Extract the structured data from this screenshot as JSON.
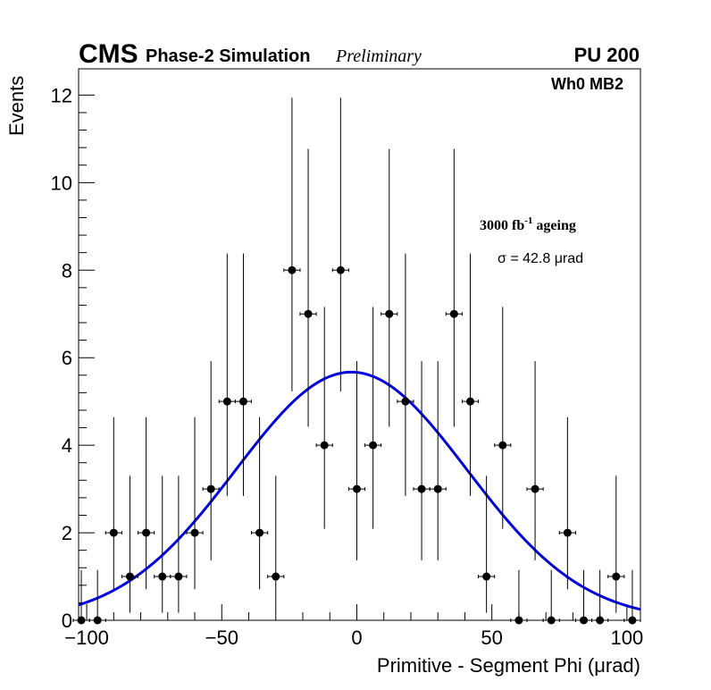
{
  "chart_data": {
    "type": "scatter",
    "title": "",
    "xlabel": "Primitive - Segment Phi (μrad)",
    "ylabel": "Events",
    "xlim": [
      -103,
      105
    ],
    "ylim": [
      0,
      12.6
    ],
    "xticks": [
      -100,
      -50,
      0,
      50,
      100
    ],
    "xtick_labels": [
      "−100",
      "−50",
      "0",
      "50",
      "100"
    ],
    "yticks": [
      0,
      2,
      4,
      6,
      8,
      10,
      12
    ],
    "ytick_labels": [
      "0",
      "2",
      "4",
      "6",
      "8",
      "10",
      "12"
    ],
    "bin_width": 6,
    "grid": false,
    "header": {
      "cms": "CMS",
      "subtitle": "Phase-2 Simulation",
      "preliminary": "Preliminary",
      "pileup": "PU 200",
      "region": "Wh0 MB2",
      "ageing_prefix": "3000 fb",
      "ageing_exp": "-1",
      "ageing_suffix": " ageing",
      "sigma_text": "σ = 42.8 μrad"
    },
    "series": [
      {
        "name": "data",
        "style": "points-with-errors",
        "color": "#000000",
        "x": [
          -102,
          -96,
          -90,
          -84,
          -78,
          -72,
          -66,
          -60,
          -54,
          -48,
          -42,
          -36,
          -30,
          -24,
          -18,
          -12,
          -6,
          0,
          6,
          12,
          18,
          24,
          30,
          36,
          42,
          48,
          54,
          60,
          66,
          72,
          78,
          84,
          90,
          96,
          102
        ],
        "y": [
          0,
          0,
          2,
          1,
          2,
          1,
          1,
          2,
          3,
          5,
          5,
          2,
          1,
          8,
          7,
          4,
          8,
          3,
          4,
          7,
          5,
          3,
          3,
          7,
          5,
          1,
          4,
          0,
          3,
          0,
          2,
          0,
          0,
          1,
          0
        ],
        "yerr_low": [
          0,
          0,
          1.29,
          0.83,
          1.29,
          0.83,
          0.83,
          1.29,
          1.63,
          2.16,
          2.16,
          1.29,
          0.83,
          2.77,
          2.58,
          1.91,
          2.77,
          1.63,
          1.91,
          2.58,
          2.16,
          1.63,
          1.63,
          2.58,
          2.16,
          0.83,
          1.91,
          0,
          1.63,
          0,
          1.29,
          0,
          0,
          0.83,
          0
        ],
        "yerr_high": [
          1.15,
          1.15,
          2.64,
          2.3,
          2.64,
          2.3,
          2.3,
          2.64,
          2.92,
          3.38,
          3.38,
          2.64,
          2.3,
          3.94,
          3.77,
          3.16,
          3.94,
          2.92,
          3.16,
          3.77,
          3.38,
          2.92,
          2.92,
          3.77,
          3.38,
          2.3,
          3.16,
          1.15,
          2.92,
          1.15,
          2.64,
          1.15,
          1.15,
          2.3,
          1.15
        ]
      },
      {
        "name": "gaussian fit",
        "style": "line",
        "color": "#0000dd",
        "amplitude": 5.67,
        "mean": -2,
        "sigma": 42.8
      }
    ]
  }
}
